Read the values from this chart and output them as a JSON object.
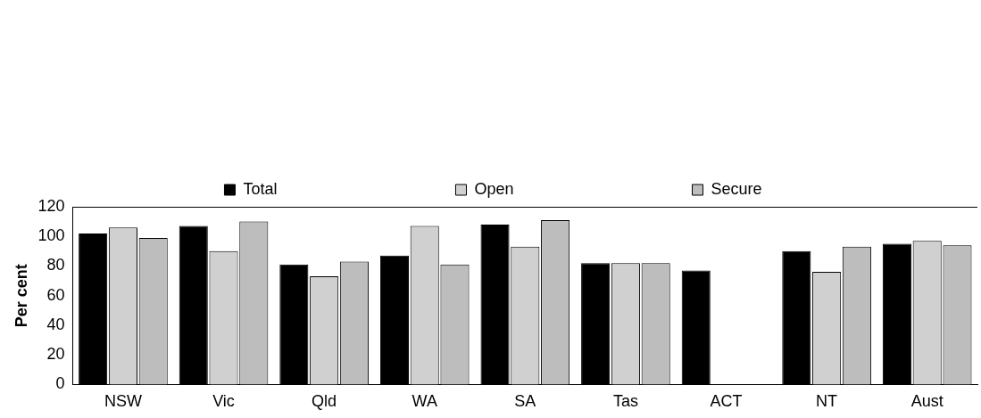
{
  "chart_data": {
    "type": "bar",
    "ylabel": "Per cent",
    "categories": [
      "NSW",
      "Vic",
      "Qld",
      "WA",
      "SA",
      "Tas",
      "ACT",
      "NT",
      "Aust"
    ],
    "series": [
      {
        "name": "Total",
        "color": "#000000",
        "values": [
          102,
          107,
          81,
          87,
          108,
          82,
          77,
          90,
          95
        ]
      },
      {
        "name": "Open",
        "color": "#d0d0d0",
        "values": [
          106,
          90,
          73,
          107,
          93,
          82,
          null,
          76,
          97
        ]
      },
      {
        "name": "Secure",
        "color": "#bdbdbd",
        "values": [
          99,
          110,
          83,
          81,
          111,
          82,
          null,
          93,
          94
        ]
      }
    ],
    "ylim": [
      0,
      120
    ],
    "yticks": [
      0,
      20,
      40,
      60,
      80,
      100,
      120
    ],
    "grid": false,
    "legend": "top"
  }
}
